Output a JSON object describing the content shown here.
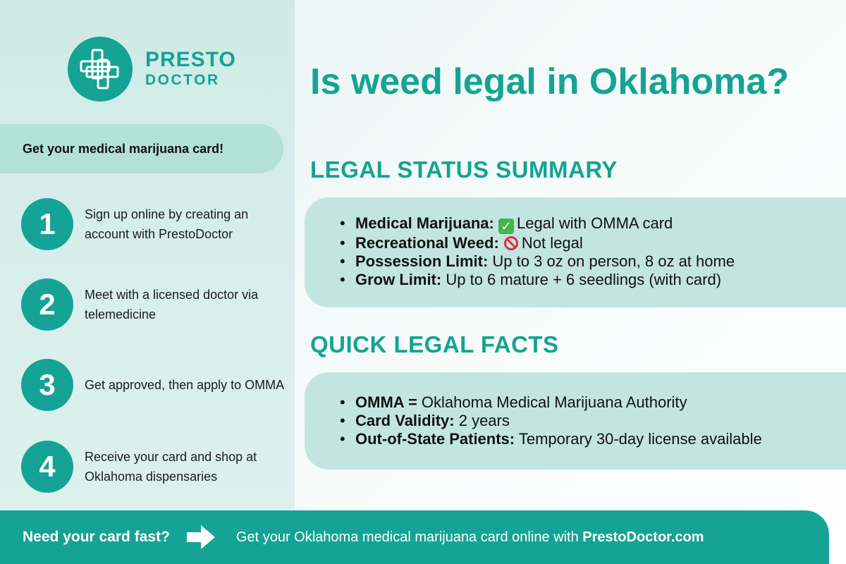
{
  "brand": {
    "name_line1": "PRESTO",
    "name_line2": "DOCTOR",
    "color": "#14a394"
  },
  "sidebar": {
    "cta_label": "Get your medical marijuana card!",
    "steps": [
      {
        "number": "1",
        "text": "Sign up online by creating an account with PrestoDoctor"
      },
      {
        "number": "2",
        "text": "Meet with a licensed doctor via telemedicine"
      },
      {
        "number": "3",
        "text": "Get approved, then apply to OMMA"
      },
      {
        "number": "4",
        "text": "Receive your card and shop at Oklahoma dispensaries"
      }
    ]
  },
  "main": {
    "title": "Is weed legal in Oklahoma?",
    "legal_status": {
      "heading": "LEGAL STATUS SUMMARY",
      "items": [
        {
          "label": "Medical Marijuana:",
          "icon": "check-mark-icon",
          "value": "Legal with OMMA card"
        },
        {
          "label": "Recreational Weed:",
          "icon": "prohibited-icon",
          "value": "Not legal"
        },
        {
          "label": "Possession Limit:",
          "value": "Up to 3 oz on person, 8 oz at home"
        },
        {
          "label": "Grow Limit:",
          "value": "Up to 6 mature + 6 seedlings (with card)"
        }
      ]
    },
    "quick_facts": {
      "heading": "QUICK LEGAL FACTS",
      "items": [
        {
          "label": "OMMA =",
          "value": "Oklahoma Medical Marijuana Authority"
        },
        {
          "label": "Card Validity:",
          "value": "2 years"
        },
        {
          "label": "Out-of-State Patients:",
          "value": "Temporary 30-day license available"
        }
      ]
    },
    "bullet": "•"
  },
  "footer": {
    "lead": "Need your card fast?",
    "arrow_icon": "arrow-right-icon",
    "text": "Get your Oklahoma medical marijuana card online with",
    "link": "PrestoDoctor.com"
  },
  "colors": {
    "accent": "#14a394",
    "panel_light": "#cfeae6",
    "box_fill": "#c3e5e1",
    "pill_fill": "#b4e0da"
  }
}
